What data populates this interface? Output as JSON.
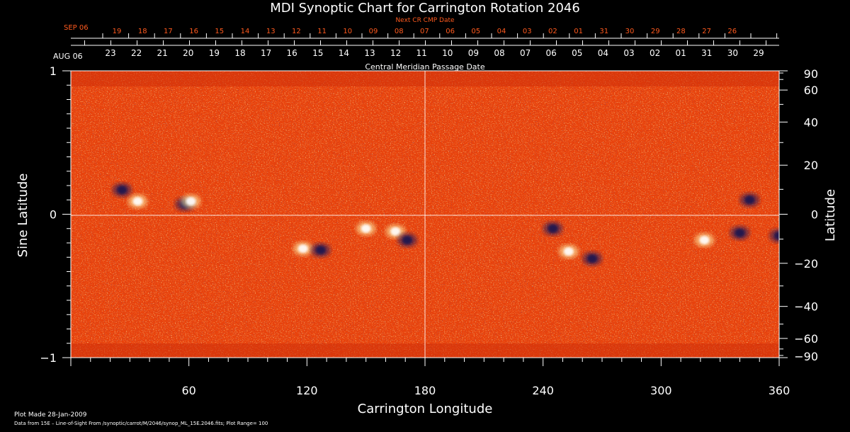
{
  "chart_data": {
    "type": "heatmap",
    "title": "MDI Synoptic Chart for Carrington Rotation 2046",
    "xlabel": "Carrington Longitude",
    "ylabel_left": "Sine Latitude",
    "ylabel_right": "Latitude",
    "xlim": [
      0,
      360
    ],
    "ylim": [
      -1,
      1
    ],
    "x_ticks": [
      60,
      120,
      180,
      240,
      300,
      360
    ],
    "y_ticks_left": [
      {
        "value": 1,
        "label": "1"
      },
      {
        "value": 0,
        "label": "0"
      },
      {
        "value": -1,
        "label": "−1"
      }
    ],
    "y_ticks_right": [
      90,
      60,
      40,
      20,
      0,
      -20,
      -40,
      -60,
      -90
    ],
    "cmp_axis": {
      "title": "Central Meridian Passage Date",
      "start_label": "AUG 06",
      "labels": [
        "23",
        "22",
        "21",
        "20",
        "19",
        "18",
        "17",
        "16",
        "15",
        "14",
        "13",
        "12",
        "11",
        "10",
        "09",
        "08",
        "07",
        "06",
        "05",
        "04",
        "03",
        "02",
        "01",
        "31",
        "30",
        "29"
      ]
    },
    "next_cmp_axis": {
      "title": "Next CR CMP Date",
      "start_label": "SEP 06",
      "labels": [
        "19",
        "18",
        "17",
        "16",
        "15",
        "14",
        "13",
        "12",
        "11",
        "10",
        "09",
        "08",
        "07",
        "06",
        "05",
        "04",
        "03",
        "02",
        "01",
        "31",
        "30",
        "29",
        "28",
        "27",
        "26"
      ]
    },
    "footer": {
      "plot_made": "Plot Made 28-Jan-2009",
      "source": "Data from 15E – Line-of-Sight From /synoptic/carrot/M/2046/synop_ML_15E.2046.fits; Plot Range=  100"
    },
    "colors": {
      "background": "#e8420c",
      "positive": "#ffffff",
      "negative": "#1a1850",
      "axes": "#ffffff",
      "next_cmp_text": "#ff5a1e"
    },
    "features": [
      {
        "type": "positive",
        "lon": 118,
        "sinlat": -0.24
      },
      {
        "type": "negative",
        "lon": 127,
        "sinlat": -0.25
      },
      {
        "type": "positive",
        "lon": 165,
        "sinlat": -0.12
      },
      {
        "type": "negative",
        "lon": 171,
        "sinlat": -0.18
      },
      {
        "type": "positive",
        "lon": 150,
        "sinlat": -0.1
      },
      {
        "type": "positive",
        "lon": 34,
        "sinlat": 0.09
      },
      {
        "type": "negative",
        "lon": 26,
        "sinlat": 0.17
      },
      {
        "type": "negative",
        "lon": 58,
        "sinlat": 0.07
      },
      {
        "type": "positive",
        "lon": 61,
        "sinlat": 0.09
      },
      {
        "type": "negative",
        "lon": 245,
        "sinlat": -0.1
      },
      {
        "type": "negative",
        "lon": 265,
        "sinlat": -0.31
      },
      {
        "type": "positive",
        "lon": 253,
        "sinlat": -0.26
      },
      {
        "type": "positive",
        "lon": 322,
        "sinlat": -0.18
      },
      {
        "type": "negative",
        "lon": 340,
        "sinlat": -0.13
      },
      {
        "type": "negative",
        "lon": 345,
        "sinlat": 0.1
      },
      {
        "type": "negative",
        "lon": 360,
        "sinlat": -0.15
      }
    ]
  }
}
